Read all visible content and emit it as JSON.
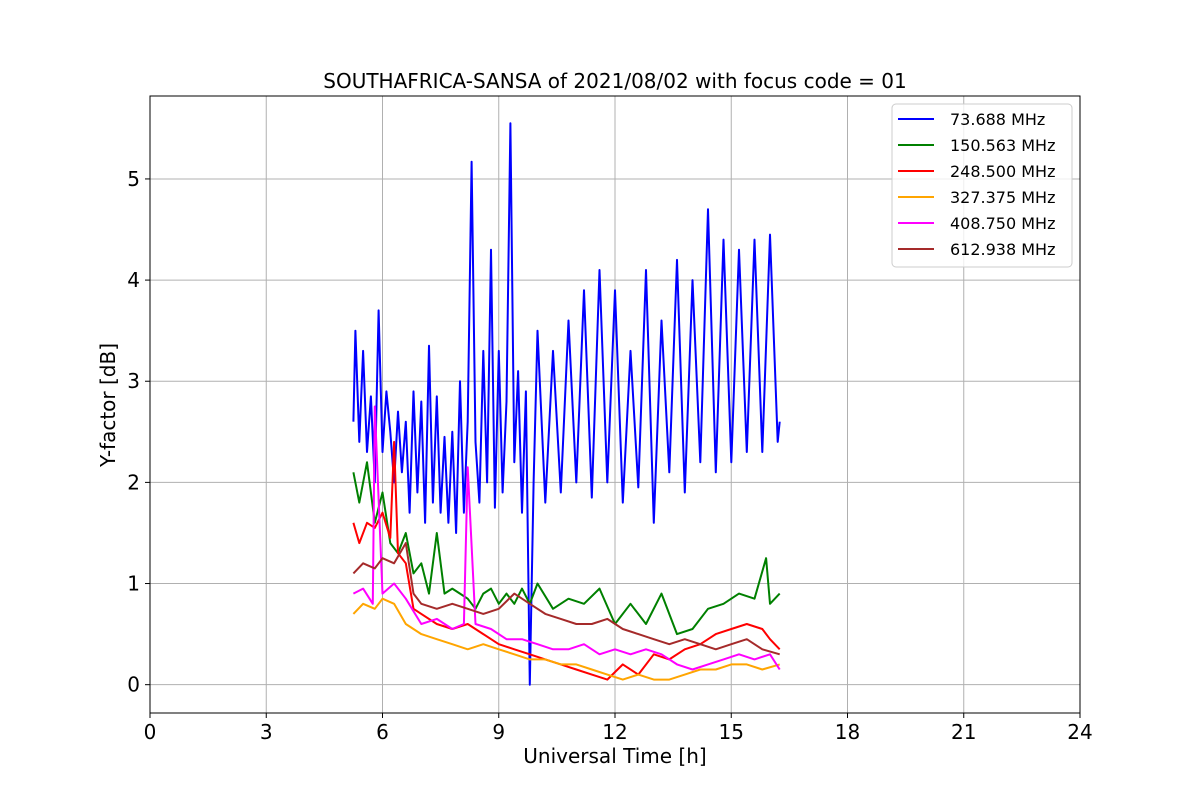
{
  "chart_data": {
    "type": "line",
    "title": "SOUTHAFRICA-SANSA of 2021/08/02 with focus code = 01",
    "xlabel": "Universal Time [h]",
    "ylabel": "Y-factor [dB]",
    "xlim": [
      0,
      24
    ],
    "ylim": [
      -0.28,
      5.82
    ],
    "xticks": [
      0,
      3,
      6,
      9,
      12,
      15,
      18,
      21,
      24
    ],
    "xtick_labels": [
      "0",
      "3",
      "6",
      "9",
      "12",
      "15",
      "18",
      "21",
      "24"
    ],
    "yticks": [
      0,
      1,
      2,
      3,
      4,
      5
    ],
    "ytick_labels": [
      "0",
      "1",
      "2",
      "3",
      "4",
      "5"
    ],
    "grid": true,
    "legend_position": "top-right",
    "series": [
      {
        "name": " 73.688 MHz",
        "color": "#0000ff",
        "x": [
          5.25,
          5.3,
          5.4,
          5.5,
          5.6,
          5.7,
          5.8,
          5.9,
          6.0,
          6.1,
          6.2,
          6.3,
          6.4,
          6.5,
          6.6,
          6.7,
          6.8,
          6.9,
          7.0,
          7.1,
          7.2,
          7.3,
          7.4,
          7.5,
          7.6,
          7.7,
          7.8,
          7.9,
          8.0,
          8.1,
          8.2,
          8.3,
          8.4,
          8.5,
          8.6,
          8.7,
          8.8,
          8.9,
          9.0,
          9.1,
          9.2,
          9.3,
          9.4,
          9.5,
          9.6,
          9.7,
          9.8,
          9.9,
          10.0,
          10.2,
          10.4,
          10.6,
          10.8,
          11.0,
          11.2,
          11.4,
          11.6,
          11.8,
          12.0,
          12.2,
          12.4,
          12.6,
          12.8,
          13.0,
          13.2,
          13.4,
          13.6,
          13.8,
          14.0,
          14.2,
          14.4,
          14.6,
          14.8,
          15.0,
          15.2,
          15.4,
          15.6,
          15.8,
          16.0,
          16.2,
          16.25
        ],
        "y": [
          2.6,
          3.5,
          2.4,
          3.3,
          2.3,
          2.85,
          2.0,
          3.7,
          2.3,
          2.9,
          2.5,
          2.0,
          2.7,
          2.1,
          2.6,
          1.7,
          2.9,
          1.9,
          2.8,
          1.6,
          3.35,
          1.8,
          2.85,
          1.7,
          2.45,
          1.6,
          2.5,
          1.5,
          3.0,
          1.7,
          2.6,
          5.17,
          2.4,
          1.8,
          3.3,
          2.0,
          4.3,
          1.75,
          3.3,
          1.9,
          2.8,
          5.55,
          2.2,
          3.1,
          1.7,
          2.9,
          0.0,
          2.0,
          3.5,
          1.8,
          3.3,
          1.9,
          3.6,
          2.0,
          3.9,
          1.85,
          4.1,
          2.0,
          3.9,
          1.8,
          3.3,
          1.95,
          4.1,
          1.6,
          3.6,
          2.1,
          4.2,
          1.9,
          4.0,
          2.2,
          4.7,
          2.1,
          4.4,
          2.2,
          4.3,
          2.3,
          4.4,
          2.3,
          4.45,
          2.4,
          2.6
        ]
      },
      {
        "name": "150.563 MHz",
        "color": "#008000",
        "x": [
          5.25,
          5.4,
          5.6,
          5.8,
          6.0,
          6.2,
          6.4,
          6.6,
          6.8,
          7.0,
          7.2,
          7.4,
          7.6,
          7.8,
          8.0,
          8.2,
          8.4,
          8.6,
          8.8,
          9.0,
          9.2,
          9.4,
          9.6,
          9.8,
          10.0,
          10.4,
          10.8,
          11.2,
          11.6,
          12.0,
          12.4,
          12.8,
          13.2,
          13.6,
          14.0,
          14.4,
          14.8,
          15.2,
          15.6,
          15.9,
          16.0,
          16.25
        ],
        "y": [
          2.1,
          1.8,
          2.2,
          1.6,
          1.9,
          1.4,
          1.3,
          1.5,
          1.1,
          1.2,
          0.9,
          1.5,
          0.9,
          0.95,
          0.9,
          0.85,
          0.75,
          0.9,
          0.95,
          0.8,
          0.9,
          0.8,
          0.95,
          0.8,
          1.0,
          0.75,
          0.85,
          0.8,
          0.95,
          0.6,
          0.8,
          0.6,
          0.9,
          0.5,
          0.55,
          0.75,
          0.8,
          0.9,
          0.85,
          1.25,
          0.8,
          0.9
        ]
      },
      {
        "name": "248.500 MHz",
        "color": "#ff0000",
        "x": [
          5.25,
          5.4,
          5.6,
          5.8,
          6.0,
          6.2,
          6.3,
          6.4,
          6.6,
          6.8,
          7.0,
          7.4,
          7.8,
          8.2,
          8.6,
          9.0,
          9.4,
          9.8,
          10.2,
          10.6,
          11.0,
          11.4,
          11.8,
          12.2,
          12.6,
          13.0,
          13.4,
          13.8,
          14.2,
          14.6,
          15.0,
          15.4,
          15.8,
          16.0,
          16.25
        ],
        "y": [
          1.6,
          1.4,
          1.6,
          1.55,
          1.7,
          1.45,
          2.4,
          1.3,
          1.2,
          0.75,
          0.7,
          0.6,
          0.55,
          0.6,
          0.5,
          0.4,
          0.35,
          0.3,
          0.25,
          0.2,
          0.15,
          0.1,
          0.05,
          0.2,
          0.1,
          0.3,
          0.25,
          0.35,
          0.4,
          0.5,
          0.55,
          0.6,
          0.55,
          0.45,
          0.35
        ]
      },
      {
        "name": "327.375 MHz",
        "color": "#ffa500",
        "x": [
          5.25,
          5.5,
          5.8,
          6.0,
          6.3,
          6.6,
          7.0,
          7.4,
          7.8,
          8.2,
          8.6,
          9.0,
          9.4,
          9.8,
          10.2,
          10.6,
          11.0,
          11.4,
          11.8,
          12.2,
          12.6,
          13.0,
          13.4,
          13.8,
          14.2,
          14.6,
          15.0,
          15.4,
          15.8,
          16.25
        ],
        "y": [
          0.7,
          0.8,
          0.75,
          0.85,
          0.8,
          0.6,
          0.5,
          0.45,
          0.4,
          0.35,
          0.4,
          0.35,
          0.3,
          0.25,
          0.25,
          0.2,
          0.2,
          0.15,
          0.1,
          0.05,
          0.1,
          0.05,
          0.05,
          0.1,
          0.15,
          0.15,
          0.2,
          0.2,
          0.15,
          0.2
        ]
      },
      {
        "name": "408.750 MHz",
        "color": "#ff00ff",
        "x": [
          5.25,
          5.5,
          5.75,
          5.8,
          6.0,
          6.3,
          6.6,
          7.0,
          7.4,
          7.8,
          8.1,
          8.2,
          8.4,
          8.8,
          9.2,
          9.6,
          10.0,
          10.4,
          10.8,
          11.2,
          11.6,
          12.0,
          12.4,
          12.8,
          13.2,
          13.6,
          14.0,
          14.4,
          14.8,
          15.2,
          15.6,
          16.0,
          16.25
        ],
        "y": [
          0.9,
          0.95,
          0.8,
          2.75,
          0.9,
          1.0,
          0.85,
          0.6,
          0.65,
          0.55,
          0.6,
          2.15,
          0.6,
          0.55,
          0.45,
          0.45,
          0.4,
          0.35,
          0.35,
          0.4,
          0.3,
          0.35,
          0.3,
          0.35,
          0.3,
          0.2,
          0.15,
          0.2,
          0.25,
          0.3,
          0.25,
          0.3,
          0.15
        ]
      },
      {
        "name": "612.938 MHz",
        "color": "#a52a2a",
        "x": [
          5.25,
          5.5,
          5.8,
          6.0,
          6.3,
          6.6,
          6.8,
          7.0,
          7.4,
          7.8,
          8.2,
          8.6,
          9.0,
          9.4,
          9.8,
          10.2,
          10.6,
          11.0,
          11.4,
          11.8,
          12.2,
          12.6,
          13.0,
          13.4,
          13.8,
          14.2,
          14.6,
          15.0,
          15.4,
          15.8,
          16.25
        ],
        "y": [
          1.1,
          1.2,
          1.15,
          1.25,
          1.2,
          1.4,
          0.9,
          0.8,
          0.75,
          0.8,
          0.75,
          0.7,
          0.75,
          0.9,
          0.8,
          0.7,
          0.65,
          0.6,
          0.6,
          0.65,
          0.55,
          0.5,
          0.45,
          0.4,
          0.45,
          0.4,
          0.35,
          0.4,
          0.45,
          0.35,
          0.3
        ]
      }
    ]
  }
}
